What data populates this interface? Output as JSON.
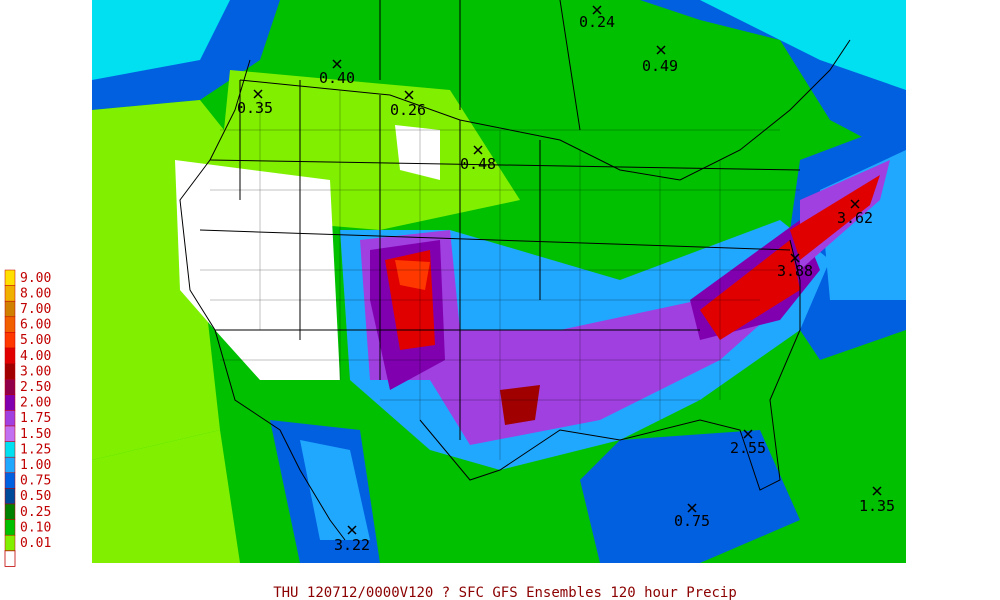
{
  "legend": {
    "items": [
      {
        "label": "9.00",
        "color": "#ffe000"
      },
      {
        "label": "8.00",
        "color": "#f0b000"
      },
      {
        "label": "7.00",
        "color": "#d08000"
      },
      {
        "label": "6.00",
        "color": "#f06000"
      },
      {
        "label": "5.00",
        "color": "#ff3800"
      },
      {
        "label": "4.00",
        "color": "#e00000"
      },
      {
        "label": "3.00",
        "color": "#a00000"
      },
      {
        "label": "2.50",
        "color": "#90004a"
      },
      {
        "label": "2.00",
        "color": "#8000b0"
      },
      {
        "label": "1.75",
        "color": "#a040e0"
      },
      {
        "label": "1.50",
        "color": "#c070f0"
      },
      {
        "label": "1.25",
        "color": "#00e0f0"
      },
      {
        "label": "1.00",
        "color": "#20a8ff"
      },
      {
        "label": "0.75",
        "color": "#0060e0"
      },
      {
        "label": "0.50",
        "color": "#004898"
      },
      {
        "label": "0.25",
        "color": "#008000"
      },
      {
        "label": "0.10",
        "color": "#00c000"
      },
      {
        "label": "0.01",
        "color": "#80f000"
      }
    ]
  },
  "points": [
    "0.24",
    "0.49",
    "0.40",
    "0.35",
    "0.26",
    "0.48",
    "3.62",
    "3.88",
    "2.55",
    "0.75",
    "1.35",
    "3.22"
  ],
  "caption": "THU 120712/0000V120  ? SFC GFS Ensembles 120 hour Precip"
}
